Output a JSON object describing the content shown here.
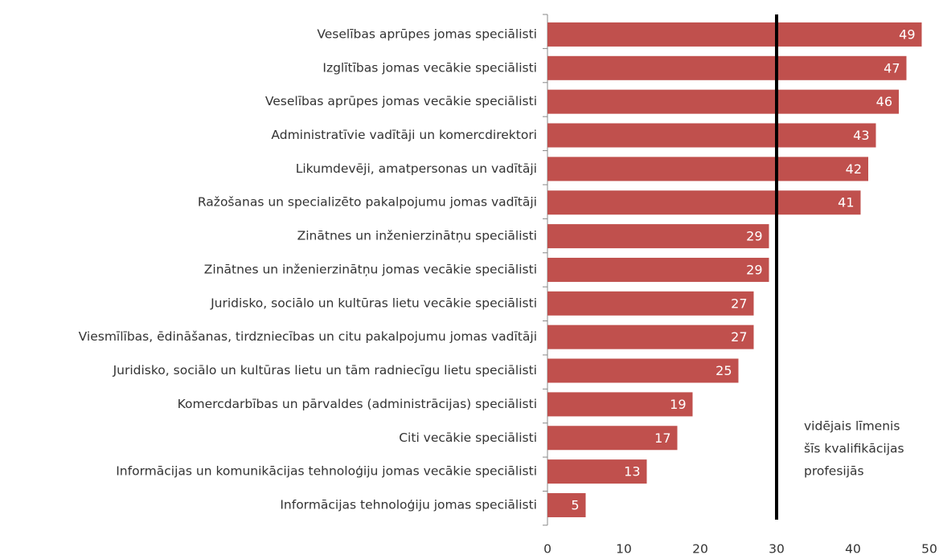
{
  "chart_data": {
    "type": "barh",
    "categories": [
      "Veselības aprūpes jomas speciālisti",
      "Izglītības jomas vecākie speciālisti",
      "Veselības aprūpes jomas vecākie speciālisti",
      "Administratīvie vadītāji un komercdirektori",
      "Likumdevēji, amatpersonas un vadītāji",
      "Ražošanas un specializēto pakalpojumu jomas vadītāji",
      "Zinātnes un inženierzinātņu speciālisti",
      "Zinātnes un inženierzinātņu jomas vecākie speciālisti",
      "Juridisko, sociālo un kultūras lietu vecākie speciālisti",
      "Viesmīlības, ēdināšanas, tirdzniecības un citu pakalpojumu jomas vadītāji",
      "Juridisko, sociālo un kultūras lietu un tām radniecīgu lietu speciālisti",
      "Komercdarbības un pārvaldes (administrācijas) speciālisti",
      "Citi vecākie speciālisti",
      "Informācijas un komunikācijas tehnoloģiju jomas vecākie speciālisti",
      "Informācijas tehnoloģiju jomas speciālisti"
    ],
    "values": [
      49,
      47,
      46,
      43,
      42,
      41,
      29,
      29,
      27,
      27,
      25,
      19,
      17,
      13,
      5
    ],
    "color": "#c0504d",
    "xlim": [
      0,
      50
    ],
    "xticks": [
      0,
      10,
      20,
      30,
      40,
      50
    ],
    "reference_line": 30,
    "annotation": [
      "vidējais līmenis",
      "šīs kvalifikācijas",
      "profesijās"
    ]
  }
}
